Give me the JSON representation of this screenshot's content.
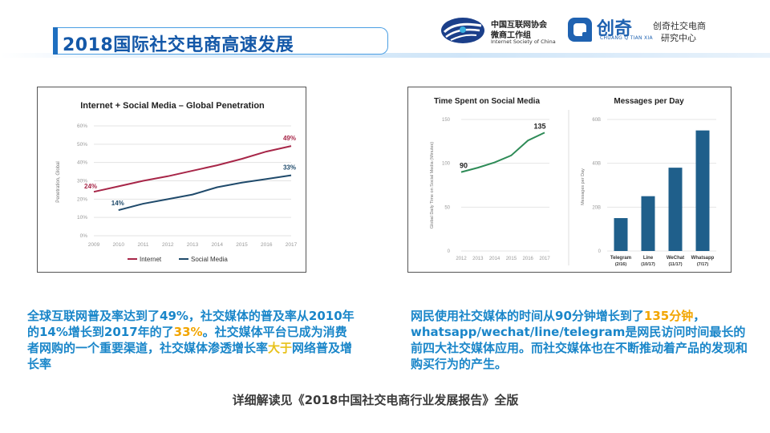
{
  "title": "2018国际社交电商高速发展",
  "logos": {
    "isc": {
      "line1": "中国互联网协会",
      "line2": "微商工作组",
      "line3": "Internet Society of China"
    },
    "cq": {
      "name": "创奇",
      "pinyin": "CHUANG  Q  TIAN  XIA",
      "line1": "创奇社交电商",
      "line2": "研究中心"
    }
  },
  "colors": {
    "internet": "#a72648",
    "social": "#1f4a6b",
    "green": "#2e8b57",
    "bar": "#1f5f8b",
    "blue_text": "#1a86c9",
    "orange": "#f2a500",
    "yellow": "#e8c21c"
  },
  "chart_data": [
    {
      "type": "line",
      "title": "Internet + Social Media – Global Penetration",
      "ylabel": "Penetration, Global",
      "x": [
        2009,
        2010,
        2011,
        2012,
        2013,
        2014,
        2015,
        2016,
        2017
      ],
      "x_tick_labels": [
        "2009",
        "2010",
        "2011",
        "2012",
        "2013",
        "2014",
        "2015",
        "2016",
        "2017"
      ],
      "y_tick_labels": [
        "0%",
        "10%",
        "20%",
        "30%",
        "40%",
        "50%",
        "60%"
      ],
      "ylim": [
        0,
        60
      ],
      "grid": true,
      "legend": "bottom",
      "series": [
        {
          "name": "Internet",
          "x": [
            2009,
            2010,
            2011,
            2012,
            2013,
            2014,
            2015,
            2016,
            2017
          ],
          "values": [
            24,
            27,
            30,
            32.5,
            35.5,
            38.5,
            42,
            46,
            49
          ]
        },
        {
          "name": "Social Media",
          "x": [
            2010,
            2011,
            2012,
            2013,
            2014,
            2015,
            2016,
            2017
          ],
          "values": [
            14,
            17.5,
            20,
            22.5,
            26.5,
            29,
            31,
            33
          ]
        }
      ],
      "annotations": [
        "24%",
        "49%",
        "14%",
        "33%"
      ]
    },
    {
      "type": "line",
      "title": "Time Spent on Social Media",
      "ylabel": "Global Daily Time on Social Media (Minutes)",
      "x": [
        2012,
        2013,
        2014,
        2015,
        2016,
        2017
      ],
      "x_tick_labels": [
        "2012",
        "2013",
        "2014",
        "2015",
        "2016",
        "2017"
      ],
      "y_tick_labels": [
        "0",
        "50",
        "100",
        "150"
      ],
      "ylim": [
        0,
        150
      ],
      "grid": true,
      "series": [
        {
          "values": [
            90,
            95,
            101,
            109,
            126,
            135
          ]
        }
      ],
      "annotations": [
        "90",
        "135"
      ]
    },
    {
      "type": "bar",
      "title": "Messages per Day",
      "ylabel": "Messages per Day",
      "categories": [
        "Telegram",
        "Line",
        "WeChat",
        "Whatsapp"
      ],
      "category_sublabels": [
        "(2/16)",
        "(10/17)",
        "(11/17)",
        "(7/17)"
      ],
      "values": [
        15,
        25,
        38,
        55
      ],
      "y_tick_labels": [
        "0",
        "20B",
        "40B",
        "60B"
      ],
      "ylim": [
        0,
        60
      ],
      "grid": true
    }
  ],
  "para_left": {
    "p1": "全球互联网普及率达到了49%，社交媒体的普及率从2010年的14%增长到2017年的了",
    "hl1": "33%",
    "p2": "。社交媒体平台已成为消费者网购的一个重要渠道，社交媒体渗透增长率",
    "hl2": "大于",
    "p3": "网络普及增长率"
  },
  "para_right": {
    "p1": "网民使用社交媒体的时间从90分钟增长到了",
    "hl1": "135分钟",
    "p2": "，whatsapp/wechat/line/telegram是网民访问时间最长的前四大社交媒体应用。而社交媒体也在不断推动着产品的发现和购买行为的产生。"
  },
  "footer": "详细解读见《2018中国社交电商行业发展报告》全版"
}
